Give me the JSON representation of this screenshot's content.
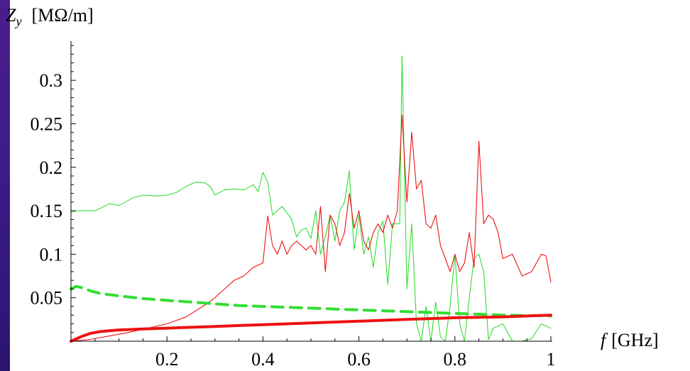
{
  "chart_data": {
    "type": "line",
    "title": "",
    "ylabel_symbol": "Z",
    "ylabel_subscript": "y",
    "ylabel_unit": "[MΩ/m]",
    "xlabel_symbol": "f",
    "xlabel_unit": "[GHz]",
    "xlim": [
      0.0,
      1.0
    ],
    "ylim": [
      0.0,
      0.345
    ],
    "xticks": [
      {
        "value": 0.2,
        "label": "0.2"
      },
      {
        "value": 0.4,
        "label": "0.4"
      },
      {
        "value": 0.6,
        "label": "0.6"
      },
      {
        "value": 0.8,
        "label": "0.8"
      },
      {
        "value": 1.0,
        "label": "1"
      }
    ],
    "yticks": [
      {
        "value": 0.05,
        "label": "0.05"
      },
      {
        "value": 0.1,
        "label": "0.1"
      },
      {
        "value": 0.15,
        "label": "0.15"
      },
      {
        "value": 0.2,
        "label": "0.2"
      },
      {
        "value": 0.25,
        "label": "0.25"
      },
      {
        "value": 0.3,
        "label": "0.3"
      }
    ],
    "grid": false,
    "legend": "none",
    "series": [
      {
        "color": "#33dd33",
        "style": "thin",
        "x": [
          0.0,
          0.01,
          0.02,
          0.05,
          0.08,
          0.1,
          0.13,
          0.15,
          0.18,
          0.2,
          0.22,
          0.24,
          0.26,
          0.28,
          0.29,
          0.3,
          0.32,
          0.34,
          0.36,
          0.38,
          0.39,
          0.4,
          0.41,
          0.42,
          0.44,
          0.46,
          0.47,
          0.48,
          0.49,
          0.5,
          0.51,
          0.52,
          0.53,
          0.54,
          0.55,
          0.56,
          0.57,
          0.58,
          0.59,
          0.6,
          0.61,
          0.62,
          0.63,
          0.64,
          0.65,
          0.66,
          0.67,
          0.68,
          0.685,
          0.69,
          0.7,
          0.71,
          0.72,
          0.73,
          0.74,
          0.75,
          0.76,
          0.77,
          0.78,
          0.79,
          0.8,
          0.81,
          0.82,
          0.83,
          0.84,
          0.85,
          0.86,
          0.87,
          0.88,
          0.9,
          0.92,
          0.94,
          0.96,
          0.98,
          1.0
        ],
        "y": [
          0.148,
          0.15,
          0.15,
          0.15,
          0.158,
          0.156,
          0.165,
          0.168,
          0.167,
          0.168,
          0.171,
          0.178,
          0.183,
          0.182,
          0.178,
          0.168,
          0.174,
          0.175,
          0.174,
          0.18,
          0.172,
          0.194,
          0.183,
          0.145,
          0.155,
          0.14,
          0.12,
          0.128,
          0.13,
          0.118,
          0.15,
          0.1,
          0.12,
          0.145,
          0.115,
          0.15,
          0.16,
          0.196,
          0.105,
          0.145,
          0.1,
          0.12,
          0.085,
          0.125,
          0.138,
          0.065,
          0.135,
          0.135,
          0.135,
          0.328,
          0.06,
          0.135,
          0.02,
          0.0,
          0.04,
          0.0,
          0.045,
          0.005,
          0.0,
          0.04,
          0.1,
          0.02,
          0.0,
          0.05,
          0.095,
          0.1,
          0.08,
          0.002,
          0.015,
          0.02,
          0.0,
          0.0,
          0.003,
          0.02,
          0.015
        ]
      },
      {
        "color": "#ee1111",
        "style": "thin",
        "x": [
          0.0,
          0.04,
          0.08,
          0.12,
          0.16,
          0.2,
          0.24,
          0.28,
          0.3,
          0.32,
          0.34,
          0.36,
          0.38,
          0.4,
          0.41,
          0.42,
          0.43,
          0.44,
          0.45,
          0.46,
          0.47,
          0.48,
          0.49,
          0.5,
          0.51,
          0.52,
          0.53,
          0.54,
          0.55,
          0.56,
          0.57,
          0.58,
          0.59,
          0.6,
          0.61,
          0.62,
          0.63,
          0.64,
          0.65,
          0.66,
          0.67,
          0.68,
          0.69,
          0.7,
          0.71,
          0.72,
          0.73,
          0.74,
          0.75,
          0.76,
          0.77,
          0.78,
          0.79,
          0.8,
          0.81,
          0.82,
          0.83,
          0.84,
          0.85,
          0.86,
          0.87,
          0.88,
          0.89,
          0.9,
          0.92,
          0.94,
          0.96,
          0.98,
          0.99,
          1.0
        ],
        "y": [
          0.0,
          0.002,
          0.006,
          0.01,
          0.015,
          0.02,
          0.028,
          0.042,
          0.05,
          0.06,
          0.07,
          0.075,
          0.085,
          0.09,
          0.144,
          0.11,
          0.1,
          0.115,
          0.1,
          0.11,
          0.115,
          0.11,
          0.105,
          0.11,
          0.1,
          0.155,
          0.08,
          0.145,
          0.135,
          0.11,
          0.125,
          0.17,
          0.13,
          0.15,
          0.115,
          0.105,
          0.125,
          0.135,
          0.125,
          0.145,
          0.13,
          0.15,
          0.26,
          0.16,
          0.24,
          0.175,
          0.185,
          0.135,
          0.13,
          0.145,
          0.11,
          0.095,
          0.08,
          0.1,
          0.08,
          0.09,
          0.125,
          0.085,
          0.23,
          0.135,
          0.145,
          0.14,
          0.125,
          0.095,
          0.1,
          0.075,
          0.08,
          0.1,
          0.098,
          0.068
        ]
      },
      {
        "color": "#33dd33",
        "style": "thick-dashed",
        "x": [
          0.0,
          0.01,
          0.02,
          0.04,
          0.06,
          0.1,
          0.15,
          0.2,
          0.25,
          0.3,
          0.35,
          0.4,
          0.5,
          0.6,
          0.7,
          0.8,
          0.9,
          1.0
        ],
        "y": [
          0.06,
          0.063,
          0.062,
          0.058,
          0.055,
          0.052,
          0.049,
          0.047,
          0.045,
          0.043,
          0.041,
          0.04,
          0.038,
          0.036,
          0.034,
          0.032,
          0.03,
          0.029
        ]
      },
      {
        "color": "#ee1111",
        "style": "thick",
        "x": [
          0.0,
          0.02,
          0.04,
          0.06,
          0.08,
          0.1,
          0.15,
          0.2,
          0.25,
          0.3,
          0.35,
          0.4,
          0.5,
          0.6,
          0.7,
          0.8,
          0.9,
          1.0
        ],
        "y": [
          0.0,
          0.005,
          0.009,
          0.011,
          0.012,
          0.013,
          0.014,
          0.015,
          0.016,
          0.017,
          0.018,
          0.019,
          0.021,
          0.023,
          0.025,
          0.027,
          0.028,
          0.03
        ]
      }
    ]
  }
}
